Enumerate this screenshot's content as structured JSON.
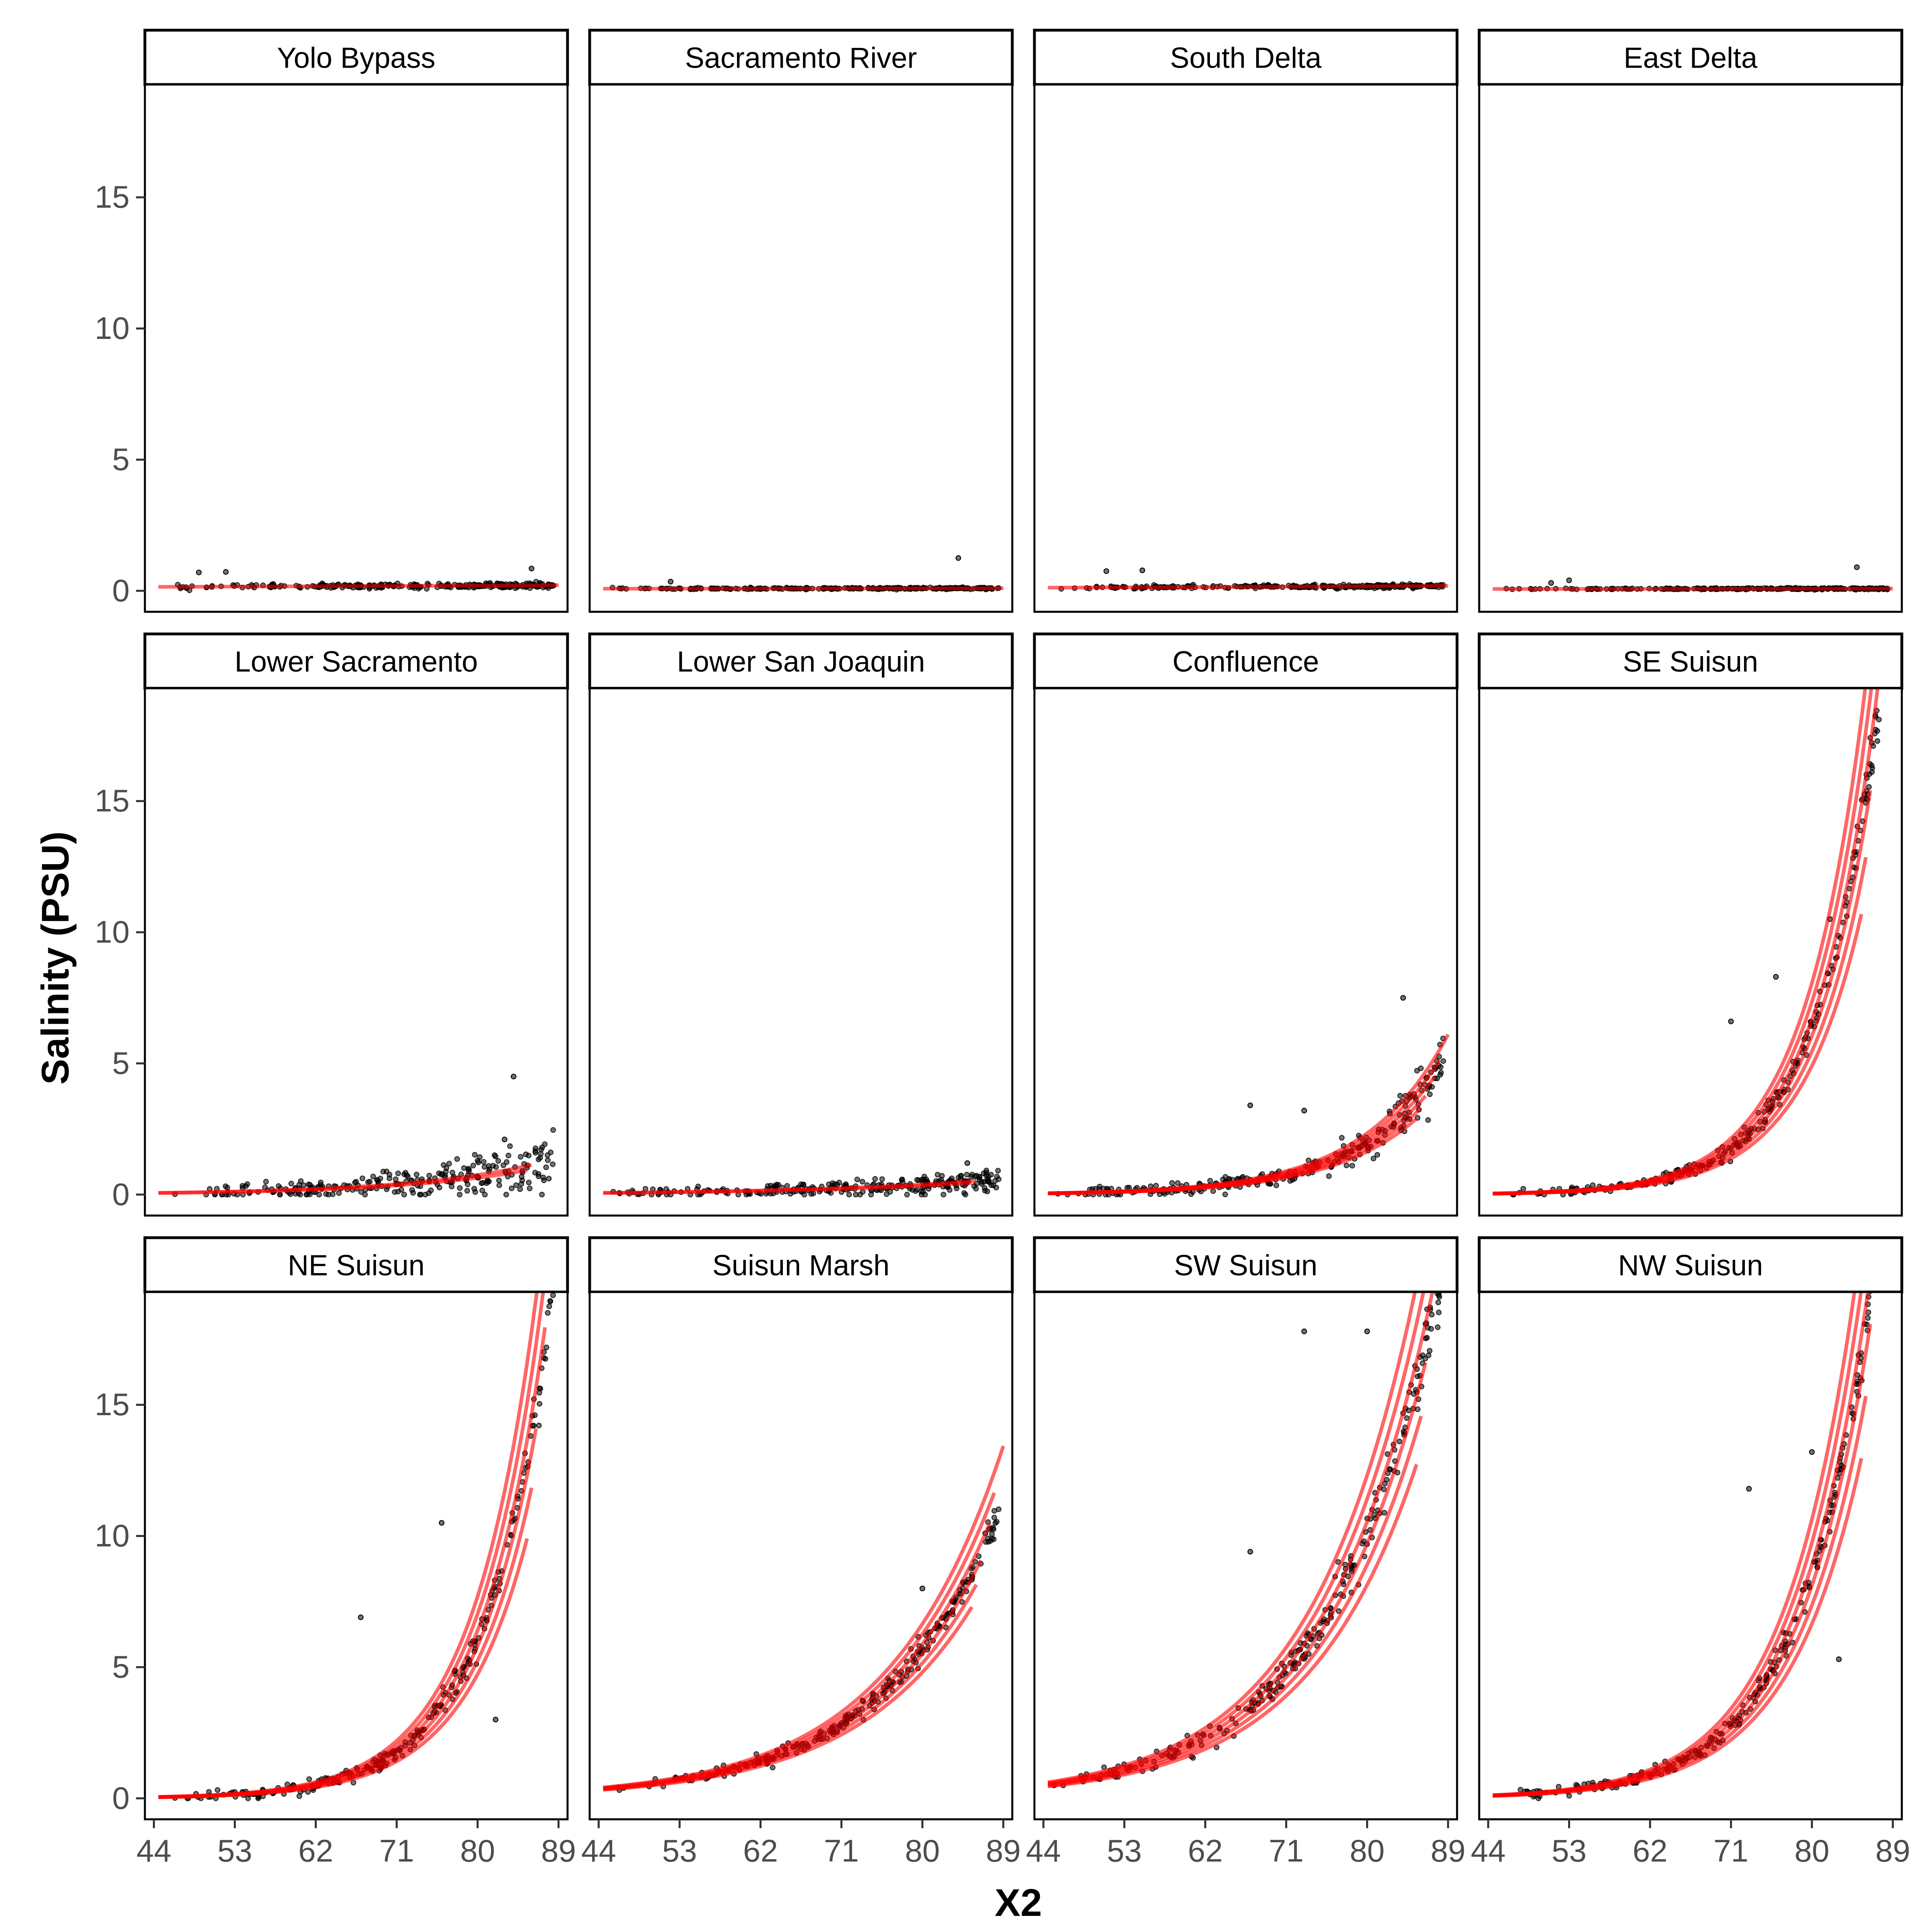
{
  "chart_data": {
    "type": "scatter",
    "layout": "faceted 3x4 grid, shared x and y axes",
    "xlabel": "X2",
    "ylabel": "Salinity (PSU)",
    "xlim": [
      43,
      90
    ],
    "ylim": [
      -0.8,
      19.3
    ],
    "x_ticks": [
      44,
      53,
      62,
      71,
      80,
      89
    ],
    "y_ticks": [
      0,
      5,
      10,
      15
    ],
    "grid": false,
    "legend": "none",
    "colors": {
      "points": "#000000",
      "fit_lines": "#ff0000",
      "strip_fill": "#ffffff",
      "panel_border": "#000000"
    },
    "panels": [
      {
        "name": "Yolo Bypass",
        "a": 0.15,
        "b": 0.008,
        "n_curves": 1,
        "spread": 0.05,
        "x_end": 89,
        "noise": 0.05,
        "outliers": [
          [
            49,
            0.7
          ],
          [
            52,
            0.72
          ],
          [
            86,
            0.85
          ]
        ]
      },
      {
        "name": "Sacramento River",
        "a": 0.08,
        "b": 0.004,
        "n_curves": 1,
        "spread": 0.03,
        "x_end": 89,
        "noise": 0.03,
        "outliers": [
          [
            52,
            0.35
          ],
          [
            84,
            1.25
          ]
        ]
      },
      {
        "name": "South Delta",
        "a": 0.12,
        "b": 0.01,
        "n_curves": 1,
        "spread": 0.05,
        "x_end": 89,
        "noise": 0.04,
        "outliers": [
          [
            51,
            0.75
          ],
          [
            55,
            0.78
          ]
        ]
      },
      {
        "name": "East Delta",
        "a": 0.07,
        "b": 0.004,
        "n_curves": 1,
        "spread": 0.03,
        "x_end": 89,
        "noise": 0.03,
        "outliers": [
          [
            51,
            0.3
          ],
          [
            53,
            0.4
          ],
          [
            85,
            0.9
          ]
        ]
      },
      {
        "name": "Lower Sacramento",
        "a": 0.06,
        "b": 0.068,
        "n_curves": 2,
        "spread": 0.06,
        "x_end": 89,
        "noise": 0.45,
        "outliers": [
          [
            84,
            4.5
          ],
          [
            83,
            2.1
          ]
        ]
      },
      {
        "name": "Lower San Joaquin",
        "a": 0.06,
        "b": 0.05,
        "n_curves": 2,
        "spread": 0.06,
        "x_end": 89,
        "noise": 0.2,
        "outliers": [
          [
            85,
            1.2
          ]
        ]
      },
      {
        "name": "Confluence",
        "a": 0.045,
        "b": 0.105,
        "n_curves": 6,
        "spread": 0.12,
        "x_end": 89,
        "noise": 0.45,
        "outliers": [
          [
            84,
            7.5
          ],
          [
            67,
            3.4
          ],
          [
            73,
            3.2
          ]
        ]
      },
      {
        "name": "SE Suisun",
        "a": 0.035,
        "b": 0.1445,
        "n_curves": 6,
        "spread": 0.15,
        "x_end": 89,
        "noise": 0.45,
        "outliers": [
          [
            71,
            6.6
          ],
          [
            76,
            8.3
          ],
          [
            82,
            10.5
          ]
        ]
      },
      {
        "name": "NE Suisun",
        "a": 0.044,
        "b": 0.137,
        "n_curves": 6,
        "spread": 0.15,
        "x_end": 89,
        "noise": 0.45,
        "outliers": [
          [
            67,
            6.9
          ],
          [
            76,
            10.5
          ],
          [
            82,
            3.0
          ]
        ]
      },
      {
        "name": "Suisun Marsh",
        "a": 0.356,
        "b": 0.077,
        "n_curves": 6,
        "spread": 0.12,
        "x_end": 89,
        "noise": 0.3,
        "outliers": [
          [
            87,
            10.1
          ],
          [
            80,
            8.0
          ]
        ]
      },
      {
        "name": "SW Suisun",
        "a": 0.51,
        "b": 0.083,
        "n_curves": 6,
        "spread": 0.15,
        "x_end": 89,
        "noise": 0.55,
        "outliers": [
          [
            73,
            17.8
          ],
          [
            80,
            17.8
          ],
          [
            67,
            9.4
          ]
        ]
      },
      {
        "name": "NW Suisun",
        "a": 0.099,
        "b": 0.1237,
        "n_curves": 6,
        "spread": 0.15,
        "x_end": 89,
        "noise": 0.45,
        "outliers": [
          [
            73,
            11.8
          ],
          [
            80,
            13.2
          ],
          [
            83,
            5.3
          ]
        ]
      }
    ]
  }
}
